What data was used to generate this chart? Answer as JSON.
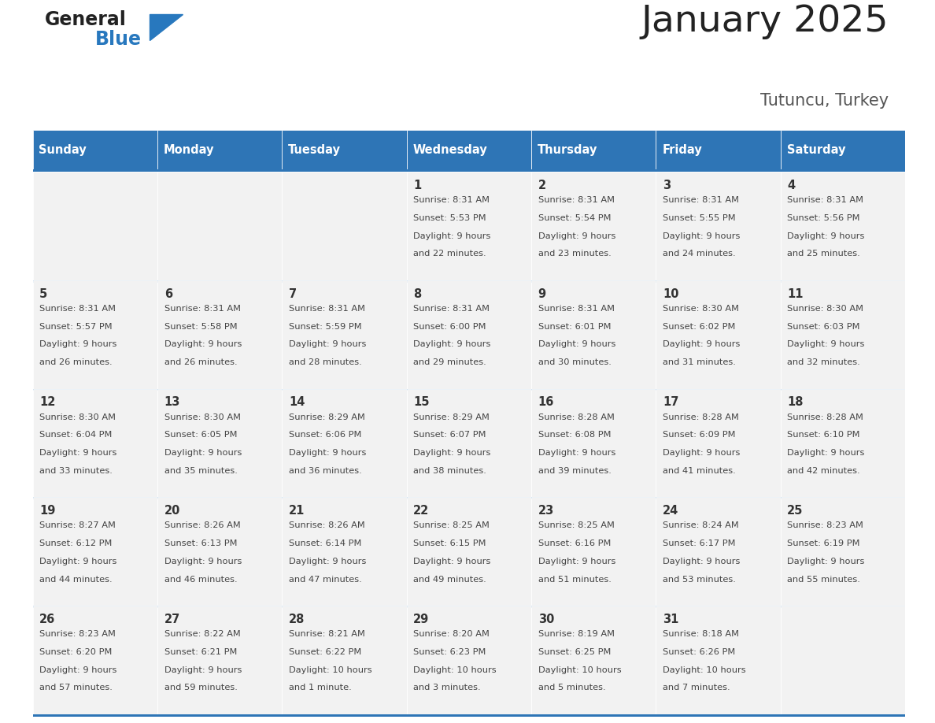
{
  "title": "January 2025",
  "subtitle": "Tutuncu, Turkey",
  "header_bg": "#2E75B6",
  "header_text_color": "#FFFFFF",
  "cell_bg": "#F2F2F2",
  "day_text_color": "#333333",
  "info_text_color": "#444444",
  "row_border_color": "#2E75B6",
  "days_of_week": [
    "Sunday",
    "Monday",
    "Tuesday",
    "Wednesday",
    "Thursday",
    "Friday",
    "Saturday"
  ],
  "weeks": [
    [
      {
        "day": "",
        "sunrise": "",
        "sunset": "",
        "daylight": ""
      },
      {
        "day": "",
        "sunrise": "",
        "sunset": "",
        "daylight": ""
      },
      {
        "day": "",
        "sunrise": "",
        "sunset": "",
        "daylight": ""
      },
      {
        "day": "1",
        "sunrise": "8:31 AM",
        "sunset": "5:53 PM",
        "daylight": "9 hours\nand 22 minutes."
      },
      {
        "day": "2",
        "sunrise": "8:31 AM",
        "sunset": "5:54 PM",
        "daylight": "9 hours\nand 23 minutes."
      },
      {
        "day": "3",
        "sunrise": "8:31 AM",
        "sunset": "5:55 PM",
        "daylight": "9 hours\nand 24 minutes."
      },
      {
        "day": "4",
        "sunrise": "8:31 AM",
        "sunset": "5:56 PM",
        "daylight": "9 hours\nand 25 minutes."
      }
    ],
    [
      {
        "day": "5",
        "sunrise": "8:31 AM",
        "sunset": "5:57 PM",
        "daylight": "9 hours\nand 26 minutes."
      },
      {
        "day": "6",
        "sunrise": "8:31 AM",
        "sunset": "5:58 PM",
        "daylight": "9 hours\nand 26 minutes."
      },
      {
        "day": "7",
        "sunrise": "8:31 AM",
        "sunset": "5:59 PM",
        "daylight": "9 hours\nand 28 minutes."
      },
      {
        "day": "8",
        "sunrise": "8:31 AM",
        "sunset": "6:00 PM",
        "daylight": "9 hours\nand 29 minutes."
      },
      {
        "day": "9",
        "sunrise": "8:31 AM",
        "sunset": "6:01 PM",
        "daylight": "9 hours\nand 30 minutes."
      },
      {
        "day": "10",
        "sunrise": "8:30 AM",
        "sunset": "6:02 PM",
        "daylight": "9 hours\nand 31 minutes."
      },
      {
        "day": "11",
        "sunrise": "8:30 AM",
        "sunset": "6:03 PM",
        "daylight": "9 hours\nand 32 minutes."
      }
    ],
    [
      {
        "day": "12",
        "sunrise": "8:30 AM",
        "sunset": "6:04 PM",
        "daylight": "9 hours\nand 33 minutes."
      },
      {
        "day": "13",
        "sunrise": "8:30 AM",
        "sunset": "6:05 PM",
        "daylight": "9 hours\nand 35 minutes."
      },
      {
        "day": "14",
        "sunrise": "8:29 AM",
        "sunset": "6:06 PM",
        "daylight": "9 hours\nand 36 minutes."
      },
      {
        "day": "15",
        "sunrise": "8:29 AM",
        "sunset": "6:07 PM",
        "daylight": "9 hours\nand 38 minutes."
      },
      {
        "day": "16",
        "sunrise": "8:28 AM",
        "sunset": "6:08 PM",
        "daylight": "9 hours\nand 39 minutes."
      },
      {
        "day": "17",
        "sunrise": "8:28 AM",
        "sunset": "6:09 PM",
        "daylight": "9 hours\nand 41 minutes."
      },
      {
        "day": "18",
        "sunrise": "8:28 AM",
        "sunset": "6:10 PM",
        "daylight": "9 hours\nand 42 minutes."
      }
    ],
    [
      {
        "day": "19",
        "sunrise": "8:27 AM",
        "sunset": "6:12 PM",
        "daylight": "9 hours\nand 44 minutes."
      },
      {
        "day": "20",
        "sunrise": "8:26 AM",
        "sunset": "6:13 PM",
        "daylight": "9 hours\nand 46 minutes."
      },
      {
        "day": "21",
        "sunrise": "8:26 AM",
        "sunset": "6:14 PM",
        "daylight": "9 hours\nand 47 minutes."
      },
      {
        "day": "22",
        "sunrise": "8:25 AM",
        "sunset": "6:15 PM",
        "daylight": "9 hours\nand 49 minutes."
      },
      {
        "day": "23",
        "sunrise": "8:25 AM",
        "sunset": "6:16 PM",
        "daylight": "9 hours\nand 51 minutes."
      },
      {
        "day": "24",
        "sunrise": "8:24 AM",
        "sunset": "6:17 PM",
        "daylight": "9 hours\nand 53 minutes."
      },
      {
        "day": "25",
        "sunrise": "8:23 AM",
        "sunset": "6:19 PM",
        "daylight": "9 hours\nand 55 minutes."
      }
    ],
    [
      {
        "day": "26",
        "sunrise": "8:23 AM",
        "sunset": "6:20 PM",
        "daylight": "9 hours\nand 57 minutes."
      },
      {
        "day": "27",
        "sunrise": "8:22 AM",
        "sunset": "6:21 PM",
        "daylight": "9 hours\nand 59 minutes."
      },
      {
        "day": "28",
        "sunrise": "8:21 AM",
        "sunset": "6:22 PM",
        "daylight": "10 hours\nand 1 minute."
      },
      {
        "day": "29",
        "sunrise": "8:20 AM",
        "sunset": "6:23 PM",
        "daylight": "10 hours\nand 3 minutes."
      },
      {
        "day": "30",
        "sunrise": "8:19 AM",
        "sunset": "6:25 PM",
        "daylight": "10 hours\nand 5 minutes."
      },
      {
        "day": "31",
        "sunrise": "8:18 AM",
        "sunset": "6:26 PM",
        "daylight": "10 hours\nand 7 minutes."
      },
      {
        "day": "",
        "sunrise": "",
        "sunset": "",
        "daylight": ""
      }
    ]
  ],
  "logo_general_color": "#222222",
  "logo_blue_color": "#2878BE",
  "title_color": "#222222",
  "subtitle_color": "#555555"
}
